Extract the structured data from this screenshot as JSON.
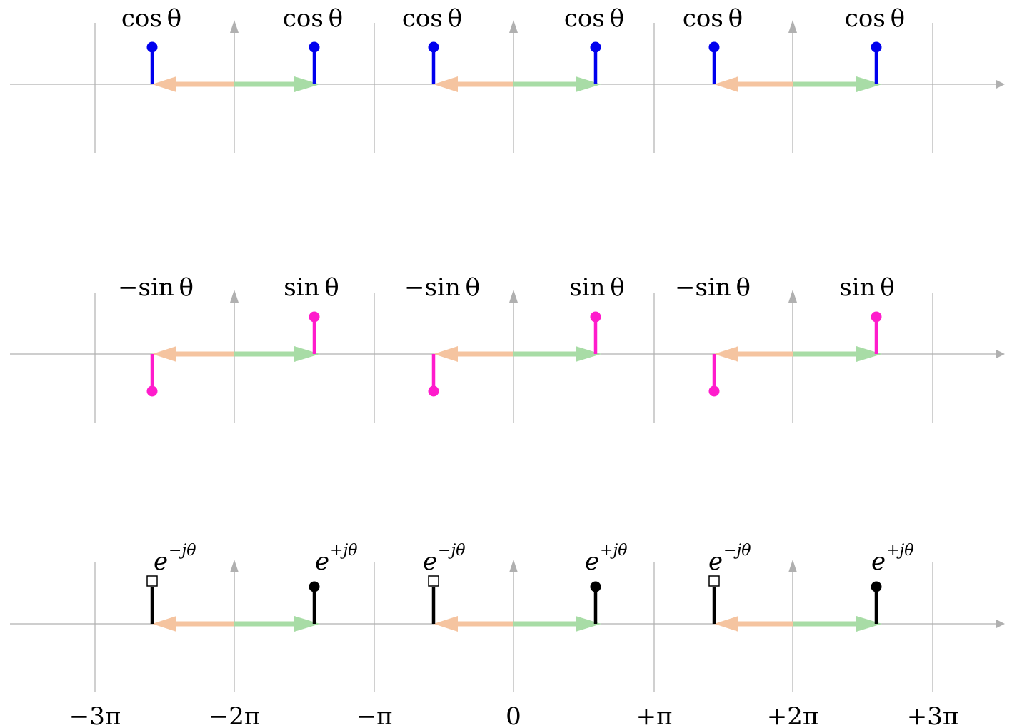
{
  "colors": {
    "axis": "#b0b0b0",
    "arrow_neg": "#f5c4a0",
    "arrow_pos": "#a8dca6",
    "cos": "#0000ee",
    "sin": "#ff1ccc",
    "exp": "#000000"
  },
  "x_ticks": [
    "−3π",
    "−2π",
    "−π",
    "0",
    "+π",
    "+2π",
    "+3π"
  ],
  "rows": [
    {
      "id": "cos",
      "left_label": "cos θ",
      "right_label": "cos θ",
      "left_value": 1,
      "right_value": 1,
      "left_marker": "dot",
      "right_marker": "dot"
    },
    {
      "id": "sin",
      "left_label": "−sin θ",
      "right_label": "sin θ",
      "left_value": -1,
      "right_value": 1,
      "left_marker": "dot",
      "right_marker": "dot"
    },
    {
      "id": "exp",
      "left_label": "e",
      "left_label_sup": "−jθ",
      "right_label": "e",
      "right_label_sup": "+jθ",
      "left_value": 1,
      "right_value": 1,
      "left_marker": "open-square",
      "right_marker": "dot"
    }
  ]
}
